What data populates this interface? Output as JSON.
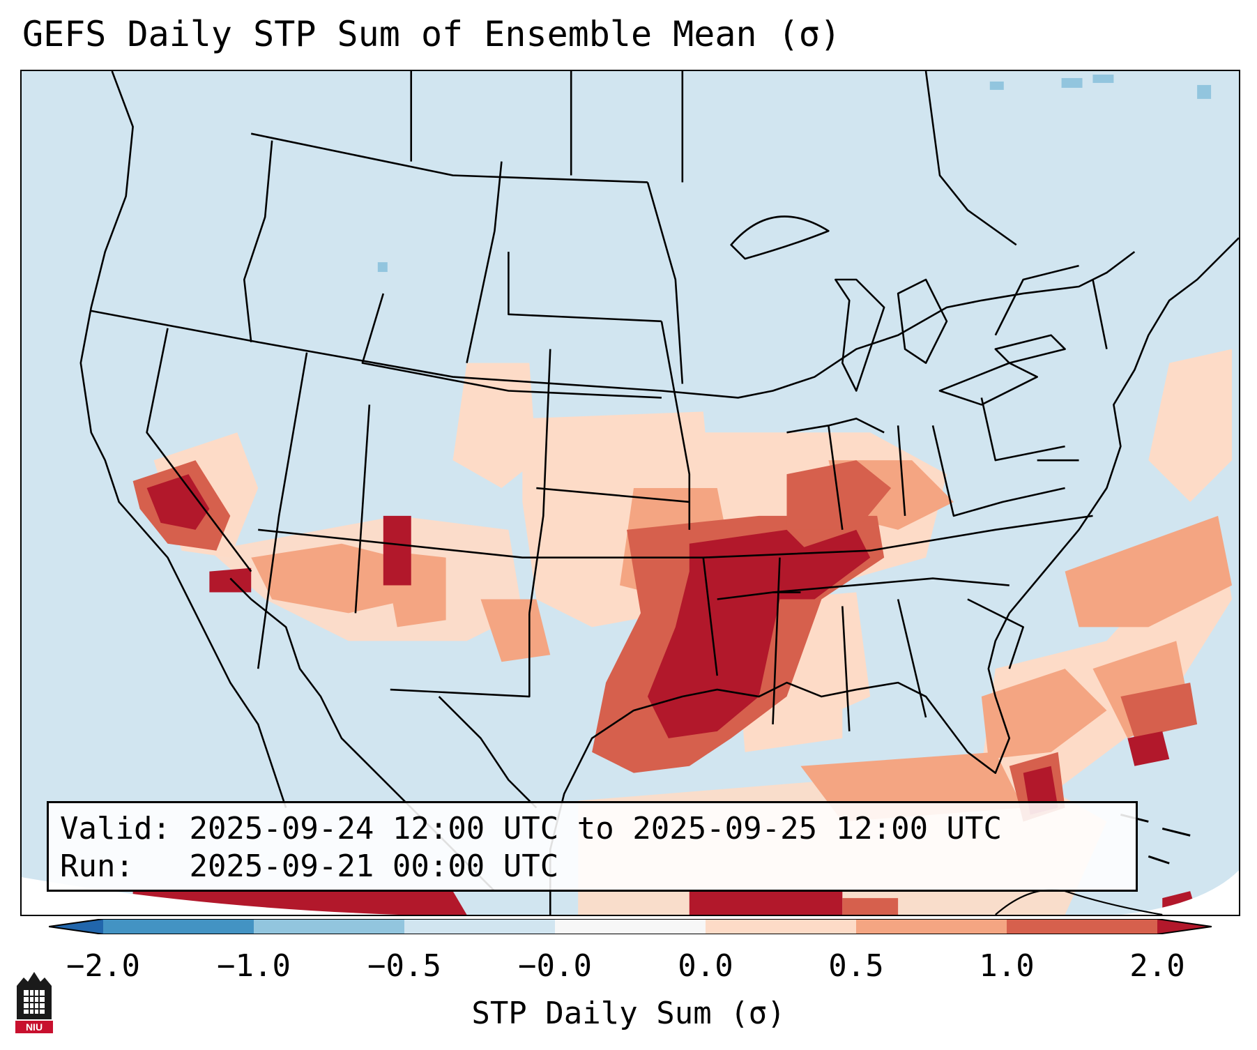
{
  "title": "GEFS Daily STP Sum of Ensemble Mean (σ)",
  "info": {
    "valid_label": "Valid:",
    "valid_value": "2025-09-24 12:00 UTC to 2025-09-25 12:00 UTC",
    "run_label": "Run:",
    "run_value": "2025-09-21 00:00 UTC"
  },
  "colorbar": {
    "label": "STP Daily Sum (σ)",
    "ticks": [
      "−2.0",
      "−1.0",
      "−0.5",
      "−0.0",
      "0.0",
      "0.5",
      "1.0",
      "2.0"
    ],
    "colors": [
      "#2166ac",
      "#4393c3",
      "#92c5de",
      "#d1e5f0",
      "#f7f7f7",
      "#fddbc7",
      "#f4a582",
      "#d6604d",
      "#b2182b"
    ]
  },
  "colors": {
    "background": "#d1e5f0",
    "strong": "#b2182b",
    "moderate": "#d6604d",
    "light": "#f4a582",
    "faint": "#fddbc7",
    "borders": "#000000"
  },
  "logo": {
    "text": "NIU"
  }
}
